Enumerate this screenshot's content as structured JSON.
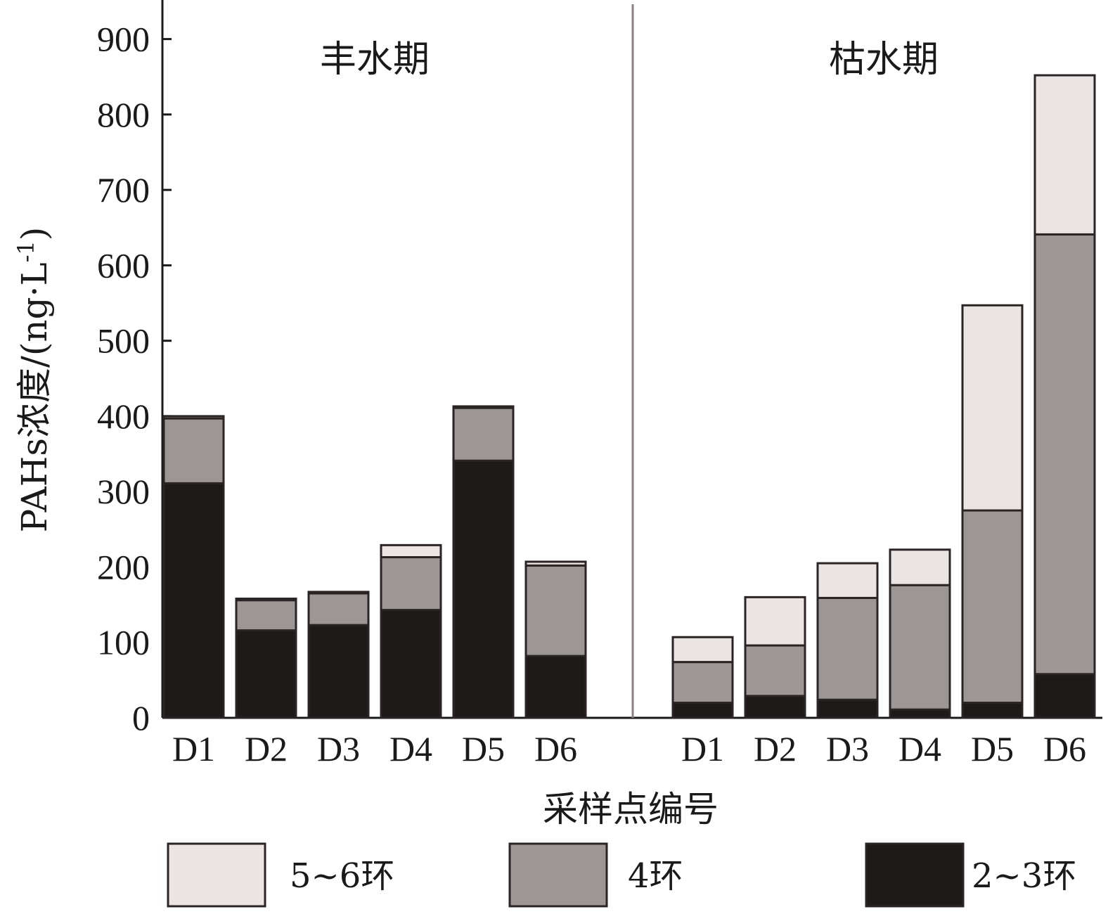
{
  "chart_data": {
    "type": "bar",
    "stacked": true,
    "ylabel": "PAHs浓度/(ng·L",
    "ylabel_sup": "-1",
    "ylabel_close": ")",
    "xlabel": "采样点编号",
    "ylim": [
      0,
      950
    ],
    "yticks": [
      0,
      100,
      200,
      300,
      400,
      500,
      600,
      700,
      800,
      900
    ],
    "series_colors": {
      "2~3环": "#1e1a1a",
      "4环": "#9c9696",
      "5~6环": "#ebe4e4"
    },
    "groups": [
      {
        "label": "丰水期",
        "categories": [
          "D1",
          "D2",
          "D3",
          "D4",
          "D5",
          "D6"
        ],
        "series": [
          {
            "name": "2~3环",
            "values": [
              311,
              116,
              123,
              143,
              341,
              82
            ]
          },
          {
            "name": "4环",
            "values": [
              86,
              40,
              42,
              70,
              70,
              120
            ]
          },
          {
            "name": "5~6环",
            "values": [
              3,
              2,
              2,
              16,
              2,
              5
            ]
          }
        ]
      },
      {
        "label": "枯水期",
        "categories": [
          "D1",
          "D2",
          "D3",
          "D4",
          "D5",
          "D6"
        ],
        "series": [
          {
            "name": "2~3环",
            "values": [
              20,
              29,
              24,
              11,
              20,
              58
            ]
          },
          {
            "name": "4环",
            "values": [
              54,
              67,
              135,
              165,
              255,
              583
            ]
          },
          {
            "name": "5~6环",
            "values": [
              33,
              64,
              46,
              47,
              272,
              211
            ]
          }
        ]
      }
    ],
    "legend": {
      "placement": "bottom",
      "entries": [
        "5~6环",
        "4环",
        "2~3环"
      ]
    }
  }
}
